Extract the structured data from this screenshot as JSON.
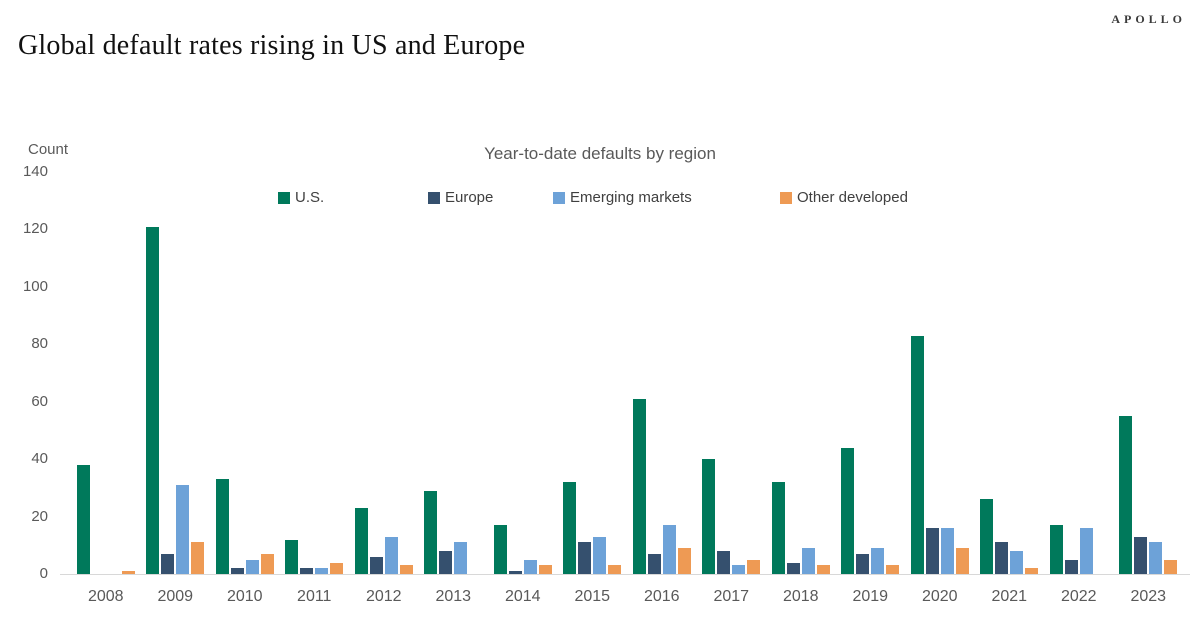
{
  "logo": "APOLLO",
  "title": "Global default rates rising in US and Europe",
  "chart_data": {
    "type": "bar",
    "title": "Year-to-date defaults by region",
    "xlabel": "",
    "ylabel": "Count",
    "ylim": [
      0,
      140
    ],
    "yticks": [
      0,
      20,
      40,
      60,
      80,
      100,
      120,
      140
    ],
    "grid": false,
    "legend_position": "top",
    "categories": [
      "2008",
      "2009",
      "2010",
      "2011",
      "2012",
      "2013",
      "2014",
      "2015",
      "2016",
      "2017",
      "2018",
      "2019",
      "2020",
      "2021",
      "2022",
      "2023"
    ],
    "series": [
      {
        "name": "U.S.",
        "color": "#00795B",
        "values": [
          38,
          121,
          33,
          12,
          23,
          29,
          17,
          32,
          61,
          40,
          32,
          44,
          83,
          26,
          17,
          55
        ]
      },
      {
        "name": "Europe",
        "color": "#35506E",
        "values": [
          0,
          7,
          2,
          2,
          6,
          8,
          1,
          11,
          7,
          8,
          4,
          7,
          16,
          11,
          5,
          13
        ]
      },
      {
        "name": "Emerging markets",
        "color": "#6DA2D8",
        "values": [
          0,
          31,
          5,
          2,
          13,
          11,
          5,
          13,
          17,
          3,
          9,
          9,
          16,
          8,
          16,
          11
        ]
      },
      {
        "name": "Other developed",
        "color": "#EE9A54",
        "values": [
          1,
          11,
          7,
          4,
          3,
          0,
          3,
          3,
          9,
          5,
          3,
          3,
          9,
          2,
          0,
          5
        ]
      }
    ]
  }
}
